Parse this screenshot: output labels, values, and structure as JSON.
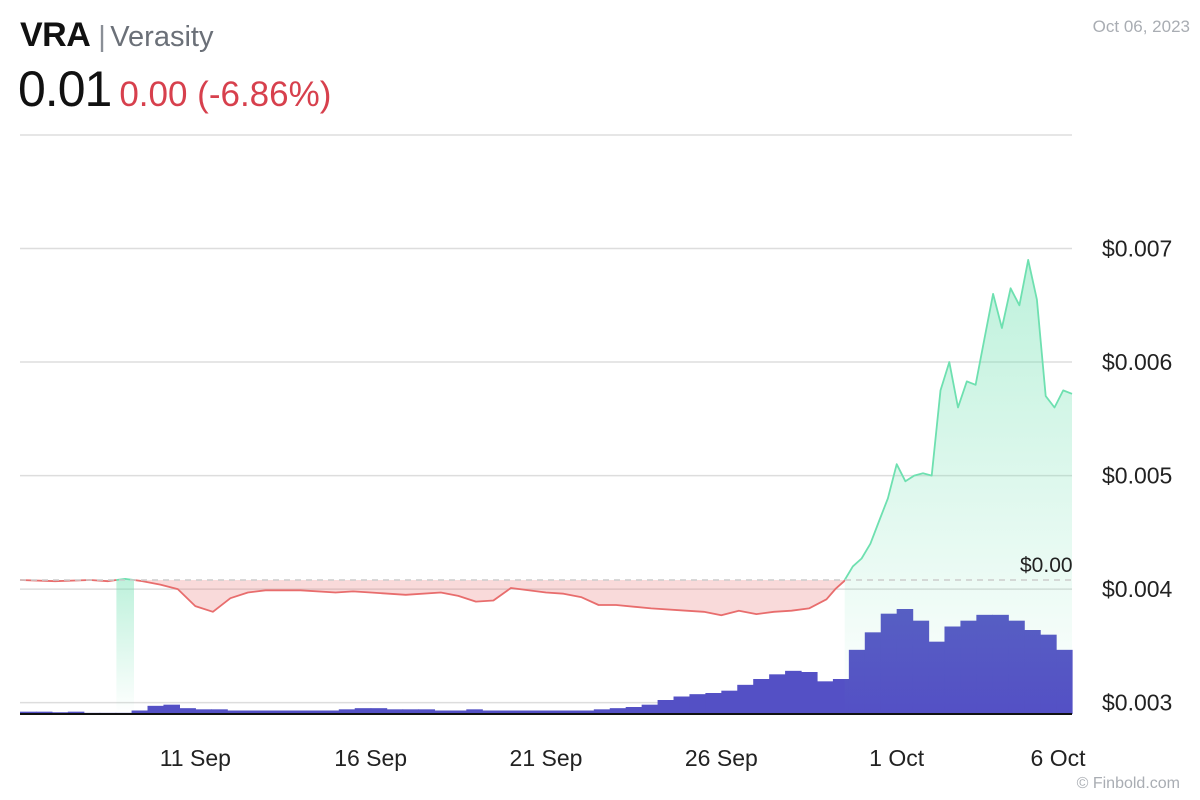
{
  "header": {
    "ticker": "VRA",
    "separator": "|",
    "name": "Verasity",
    "price": "0.01",
    "change": "0.00 (-6.86%)",
    "date": "Oct 06, 2023"
  },
  "footer": {
    "credit": "© Finbold.com"
  },
  "colors": {
    "up": "#6ee0b0",
    "down": "#e86d6d",
    "change_text": "#d7404d",
    "volume": "#5450c5",
    "grid": "#dddddd",
    "reference_line": "#cccccc"
  },
  "chart_data": {
    "type": "line",
    "title": "",
    "reference": {
      "value": 0.00408,
      "label": "$0.00"
    },
    "y_axis": {
      "range": [
        0.0029,
        0.008
      ],
      "ticks": [
        0.003,
        0.004,
        0.005,
        0.006,
        0.007
      ],
      "tick_labels": [
        "$0.003",
        "$0.004",
        "$0.005",
        "$0.006",
        "$0.007"
      ]
    },
    "x_axis": {
      "range": [
        "2023-09-06",
        "2023-10-06"
      ],
      "ticks": [
        "2023-09-11",
        "2023-09-16",
        "2023-09-21",
        "2023-09-26",
        "2023-10-01",
        "2023-10-06"
      ],
      "tick_labels": [
        "11 Sep",
        "16 Sep",
        "21 Sep",
        "26 Sep",
        "1 Oct",
        "6 Oct"
      ]
    },
    "grid": true,
    "series": [
      {
        "x": [
          "2023-09-06",
          "2023-09-07",
          "2023-09-08",
          "2023-09-08 12:00",
          "2023-09-09",
          "2023-09-09 12:00",
          "2023-09-10",
          "2023-09-10 12:00",
          "2023-09-11",
          "2023-09-11 12:00",
          "2023-09-12",
          "2023-09-12 12:00",
          "2023-09-13",
          "2023-09-14",
          "2023-09-15",
          "2023-09-15 12:00",
          "2023-09-16",
          "2023-09-17",
          "2023-09-18",
          "2023-09-18 12:00",
          "2023-09-19",
          "2023-09-19 12:00",
          "2023-09-20",
          "2023-09-21",
          "2023-09-21 12:00",
          "2023-09-22",
          "2023-09-22 12:00",
          "2023-09-23",
          "2023-09-24",
          "2023-09-25",
          "2023-09-25 12:00",
          "2023-09-26",
          "2023-09-26 12:00",
          "2023-09-27",
          "2023-09-27 12:00",
          "2023-09-28",
          "2023-09-28 12:00",
          "2023-09-29",
          "2023-09-29 06:00",
          "2023-09-29 12:00",
          "2023-09-29 18:00",
          "2023-09-30",
          "2023-09-30 06:00",
          "2023-09-30 12:00",
          "2023-09-30 18:00",
          "2023-10-01",
          "2023-10-01 06:00",
          "2023-10-01 12:00",
          "2023-10-01 18:00",
          "2023-10-02",
          "2023-10-02 06:00",
          "2023-10-02 12:00",
          "2023-10-02 18:00",
          "2023-10-03",
          "2023-10-03 06:00",
          "2023-10-03 12:00",
          "2023-10-03 18:00",
          "2023-10-04",
          "2023-10-04 06:00",
          "2023-10-04 12:00",
          "2023-10-04 18:00",
          "2023-10-05",
          "2023-10-05 06:00",
          "2023-10-05 12:00",
          "2023-10-05 18:00",
          "2023-10-06"
        ],
        "values": [
          0.00408,
          0.00407,
          0.00408,
          0.00407,
          0.00409,
          0.00407,
          0.00404,
          0.004,
          0.00385,
          0.0038,
          0.00392,
          0.00397,
          0.00399,
          0.00399,
          0.00397,
          0.00398,
          0.00397,
          0.00395,
          0.00397,
          0.00394,
          0.00389,
          0.0039,
          0.00401,
          0.00397,
          0.00396,
          0.00393,
          0.00386,
          0.00386,
          0.00383,
          0.00381,
          0.0038,
          0.00377,
          0.00381,
          0.00378,
          0.0038,
          0.00381,
          0.00383,
          0.00391,
          0.004,
          0.00407,
          0.0042,
          0.00427,
          0.0044,
          0.0046,
          0.0048,
          0.0051,
          0.00495,
          0.005,
          0.00502,
          0.005,
          0.00575,
          0.006,
          0.0056,
          0.00583,
          0.0058,
          0.0062,
          0.0066,
          0.0063,
          0.00665,
          0.0065,
          0.0069,
          0.00655,
          0.0057,
          0.0056,
          0.00575,
          0.00572
        ]
      }
    ],
    "volume": {
      "values": [
        2,
        2,
        1.5,
        2,
        1,
        1,
        1,
        3,
        7,
        8,
        5,
        4,
        4,
        3,
        3,
        3,
        3,
        3,
        3,
        3,
        4,
        5,
        5,
        4,
        4,
        4,
        3,
        3,
        4,
        3,
        3,
        3,
        3,
        3,
        3,
        3,
        4,
        5,
        6,
        8,
        12,
        15,
        17,
        18,
        20,
        25,
        30,
        34,
        37,
        36,
        28,
        30,
        55,
        70,
        86,
        90,
        80,
        62,
        75,
        80,
        85,
        85,
        80,
        72,
        68,
        55
      ]
    }
  }
}
